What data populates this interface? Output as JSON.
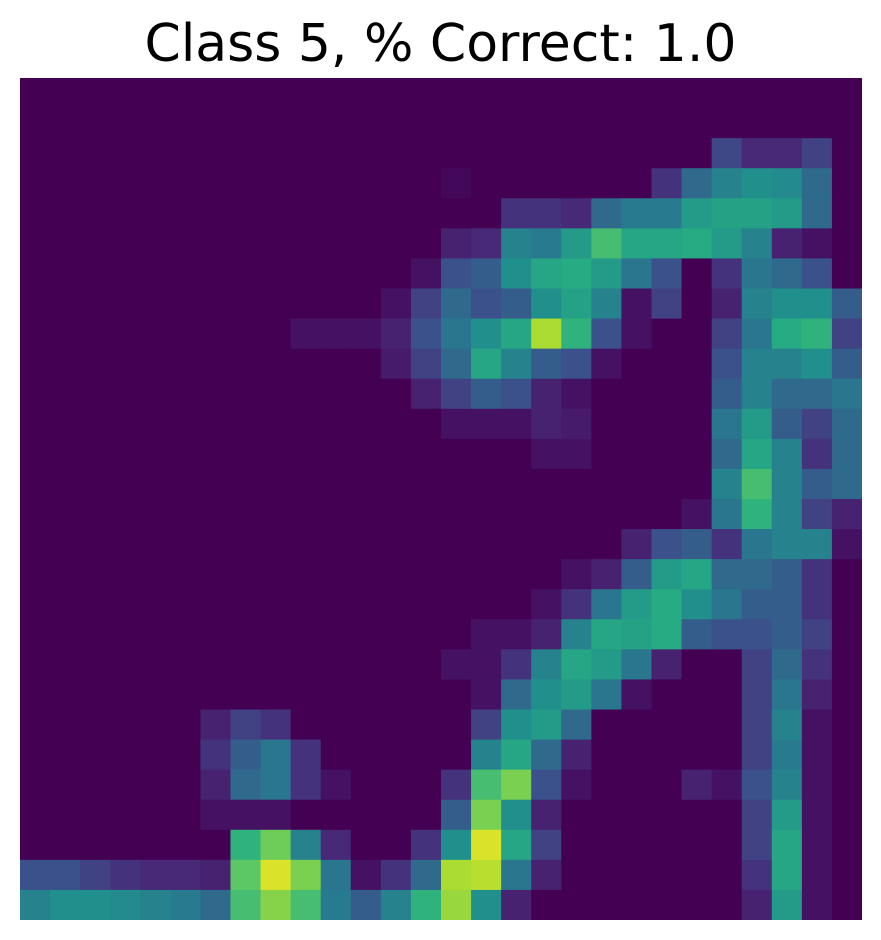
{
  "title": "Class 5, % Correct: 1.0",
  "chart_data": {
    "type": "heatmap",
    "title": "Class 5, % Correct: 1.0",
    "colormap": "viridis",
    "vmin": 0,
    "vmax": 1,
    "axes_visible": false,
    "grid": false,
    "rows": 28,
    "cols": 28,
    "values": [
      [
        0,
        0,
        0,
        0,
        0,
        0,
        0,
        0,
        0,
        0,
        0,
        0,
        0,
        0,
        0,
        0,
        0,
        0,
        0,
        0,
        0,
        0,
        0,
        0,
        0,
        0,
        0,
        0
      ],
      [
        0,
        0,
        0,
        0,
        0,
        0,
        0,
        0,
        0,
        0,
        0,
        0,
        0,
        0,
        0,
        0,
        0,
        0,
        0,
        0,
        0,
        0,
        0,
        0,
        0,
        0,
        0,
        0
      ],
      [
        0,
        0,
        0,
        0,
        0,
        0,
        0,
        0,
        0,
        0,
        0,
        0,
        0,
        0,
        0,
        0,
        0,
        0,
        0,
        0,
        0,
        0,
        0,
        0.22,
        0.12,
        0.12,
        0.2,
        0
      ],
      [
        0,
        0,
        0,
        0,
        0,
        0,
        0,
        0,
        0,
        0,
        0,
        0,
        0,
        0,
        0.02,
        0,
        0,
        0,
        0,
        0,
        0,
        0.15,
        0.35,
        0.45,
        0.5,
        0.48,
        0.35,
        0
      ],
      [
        0,
        0,
        0,
        0,
        0,
        0,
        0,
        0,
        0,
        0,
        0,
        0,
        0,
        0,
        0,
        0,
        0.15,
        0.15,
        0.12,
        0.35,
        0.42,
        0.42,
        0.55,
        0.58,
        0.58,
        0.55,
        0.35,
        0
      ],
      [
        0,
        0,
        0,
        0,
        0,
        0,
        0,
        0,
        0,
        0,
        0,
        0,
        0,
        0,
        0.1,
        0.12,
        0.45,
        0.42,
        0.55,
        0.7,
        0.6,
        0.6,
        0.62,
        0.55,
        0.45,
        0.1,
        0.05,
        0
      ],
      [
        0,
        0,
        0,
        0,
        0,
        0,
        0,
        0,
        0,
        0,
        0,
        0,
        0,
        0.05,
        0.25,
        0.3,
        0.5,
        0.6,
        0.62,
        0.55,
        0.4,
        0.25,
        0,
        0.15,
        0.4,
        0.35,
        0.25,
        0
      ],
      [
        0,
        0,
        0,
        0,
        0,
        0,
        0,
        0,
        0,
        0,
        0,
        0,
        0.05,
        0.2,
        0.35,
        0.25,
        0.3,
        0.5,
        0.58,
        0.45,
        0.05,
        0.2,
        0,
        0.1,
        0.45,
        0.5,
        0.5,
        0.3
      ],
      [
        0,
        0,
        0,
        0,
        0,
        0,
        0,
        0,
        0,
        0.05,
        0.05,
        0.05,
        0.1,
        0.25,
        0.4,
        0.5,
        0.6,
        0.88,
        0.65,
        0.25,
        0.05,
        0,
        0,
        0.2,
        0.4,
        0.62,
        0.65,
        0.2
      ],
      [
        0,
        0,
        0,
        0,
        0,
        0,
        0,
        0,
        0,
        0,
        0,
        0,
        0.08,
        0.2,
        0.35,
        0.6,
        0.45,
        0.3,
        0.25,
        0.05,
        0,
        0,
        0,
        0.25,
        0.45,
        0.45,
        0.5,
        0.3
      ],
      [
        0,
        0,
        0,
        0,
        0,
        0,
        0,
        0,
        0,
        0,
        0,
        0,
        0,
        0.1,
        0.2,
        0.3,
        0.25,
        0.1,
        0.05,
        0,
        0,
        0,
        0,
        0.3,
        0.45,
        0.35,
        0.35,
        0.4
      ],
      [
        0,
        0,
        0,
        0,
        0,
        0,
        0,
        0,
        0,
        0,
        0,
        0,
        0,
        0,
        0.05,
        0.05,
        0.05,
        0.1,
        0.08,
        0,
        0,
        0,
        0,
        0.4,
        0.55,
        0.3,
        0.2,
        0.35
      ],
      [
        0,
        0,
        0,
        0,
        0,
        0,
        0,
        0,
        0,
        0,
        0,
        0,
        0,
        0,
        0,
        0,
        0,
        0.05,
        0.05,
        0,
        0,
        0,
        0,
        0.35,
        0.6,
        0.45,
        0.15,
        0.35
      ],
      [
        0,
        0,
        0,
        0,
        0,
        0,
        0,
        0,
        0,
        0,
        0,
        0,
        0,
        0,
        0,
        0,
        0,
        0,
        0,
        0,
        0,
        0,
        0,
        0.45,
        0.7,
        0.45,
        0.3,
        0.35
      ],
      [
        0,
        0,
        0,
        0,
        0,
        0,
        0,
        0,
        0,
        0,
        0,
        0,
        0,
        0,
        0,
        0,
        0,
        0,
        0,
        0,
        0,
        0,
        0.05,
        0.4,
        0.65,
        0.45,
        0.2,
        0.1
      ],
      [
        0,
        0,
        0,
        0,
        0,
        0,
        0,
        0,
        0,
        0,
        0,
        0,
        0,
        0,
        0,
        0,
        0,
        0,
        0,
        0,
        0.1,
        0.25,
        0.3,
        0.15,
        0.4,
        0.45,
        0.45,
        0.05
      ],
      [
        0,
        0,
        0,
        0,
        0,
        0,
        0,
        0,
        0,
        0,
        0,
        0,
        0,
        0,
        0,
        0,
        0,
        0,
        0.05,
        0.1,
        0.3,
        0.55,
        0.6,
        0.35,
        0.35,
        0.3,
        0.15,
        0
      ],
      [
        0,
        0,
        0,
        0,
        0,
        0,
        0,
        0,
        0,
        0,
        0,
        0,
        0,
        0,
        0,
        0,
        0,
        0.05,
        0.15,
        0.4,
        0.55,
        0.62,
        0.5,
        0.4,
        0.3,
        0.3,
        0.15,
        0
      ],
      [
        0,
        0,
        0,
        0,
        0,
        0,
        0,
        0,
        0,
        0,
        0,
        0,
        0,
        0,
        0,
        0.05,
        0.05,
        0.1,
        0.45,
        0.6,
        0.58,
        0.62,
        0.3,
        0.25,
        0.25,
        0.3,
        0.2,
        0
      ],
      [
        0,
        0,
        0,
        0,
        0,
        0,
        0,
        0,
        0,
        0,
        0,
        0,
        0,
        0,
        0.05,
        0.05,
        0.15,
        0.45,
        0.6,
        0.55,
        0.4,
        0.1,
        0,
        0,
        0.2,
        0.35,
        0.15,
        0
      ],
      [
        0,
        0,
        0,
        0,
        0,
        0,
        0,
        0,
        0,
        0,
        0,
        0,
        0,
        0,
        0,
        0.05,
        0.35,
        0.5,
        0.55,
        0.4,
        0.05,
        0,
        0,
        0,
        0.2,
        0.4,
        0.1,
        0
      ],
      [
        0,
        0,
        0,
        0,
        0,
        0,
        0.1,
        0.2,
        0.15,
        0,
        0,
        0,
        0,
        0,
        0,
        0.2,
        0.5,
        0.55,
        0.35,
        0,
        0,
        0,
        0,
        0,
        0.2,
        0.45,
        0.05,
        0
      ],
      [
        0,
        0,
        0,
        0,
        0,
        0,
        0.15,
        0.3,
        0.4,
        0.15,
        0,
        0,
        0,
        0,
        0,
        0.45,
        0.6,
        0.35,
        0.1,
        0,
        0,
        0,
        0,
        0,
        0.2,
        0.42,
        0.05,
        0
      ],
      [
        0,
        0,
        0,
        0,
        0,
        0,
        0.1,
        0.35,
        0.4,
        0.15,
        0.05,
        0,
        0,
        0,
        0.15,
        0.7,
        0.8,
        0.25,
        0.05,
        0,
        0,
        0,
        0.1,
        0.05,
        0.25,
        0.45,
        0.05,
        0
      ],
      [
        0,
        0,
        0,
        0,
        0,
        0,
        0.05,
        0.05,
        0.05,
        0,
        0,
        0,
        0,
        0,
        0.3,
        0.8,
        0.5,
        0.1,
        0,
        0,
        0,
        0,
        0,
        0,
        0.2,
        0.55,
        0.05,
        0
      ],
      [
        0,
        0,
        0,
        0,
        0,
        0,
        0,
        0.65,
        0.78,
        0.45,
        0.12,
        0,
        0,
        0.15,
        0.5,
        0.95,
        0.6,
        0.2,
        0,
        0,
        0,
        0,
        0,
        0,
        0.2,
        0.6,
        0.05,
        0
      ],
      [
        0.25,
        0.25,
        0.2,
        0.15,
        0.12,
        0.12,
        0.1,
        0.75,
        0.95,
        0.8,
        0.4,
        0.05,
        0.15,
        0.35,
        0.88,
        0.9,
        0.4,
        0.1,
        0,
        0,
        0,
        0,
        0,
        0,
        0.15,
        0.6,
        0.05,
        0
      ],
      [
        0.45,
        0.5,
        0.5,
        0.48,
        0.45,
        0.42,
        0.35,
        0.7,
        0.82,
        0.7,
        0.42,
        0.3,
        0.45,
        0.65,
        0.85,
        0.5,
        0.1,
        0,
        0,
        0,
        0,
        0,
        0,
        0,
        0.1,
        0.55,
        0.05,
        0
      ]
    ]
  }
}
